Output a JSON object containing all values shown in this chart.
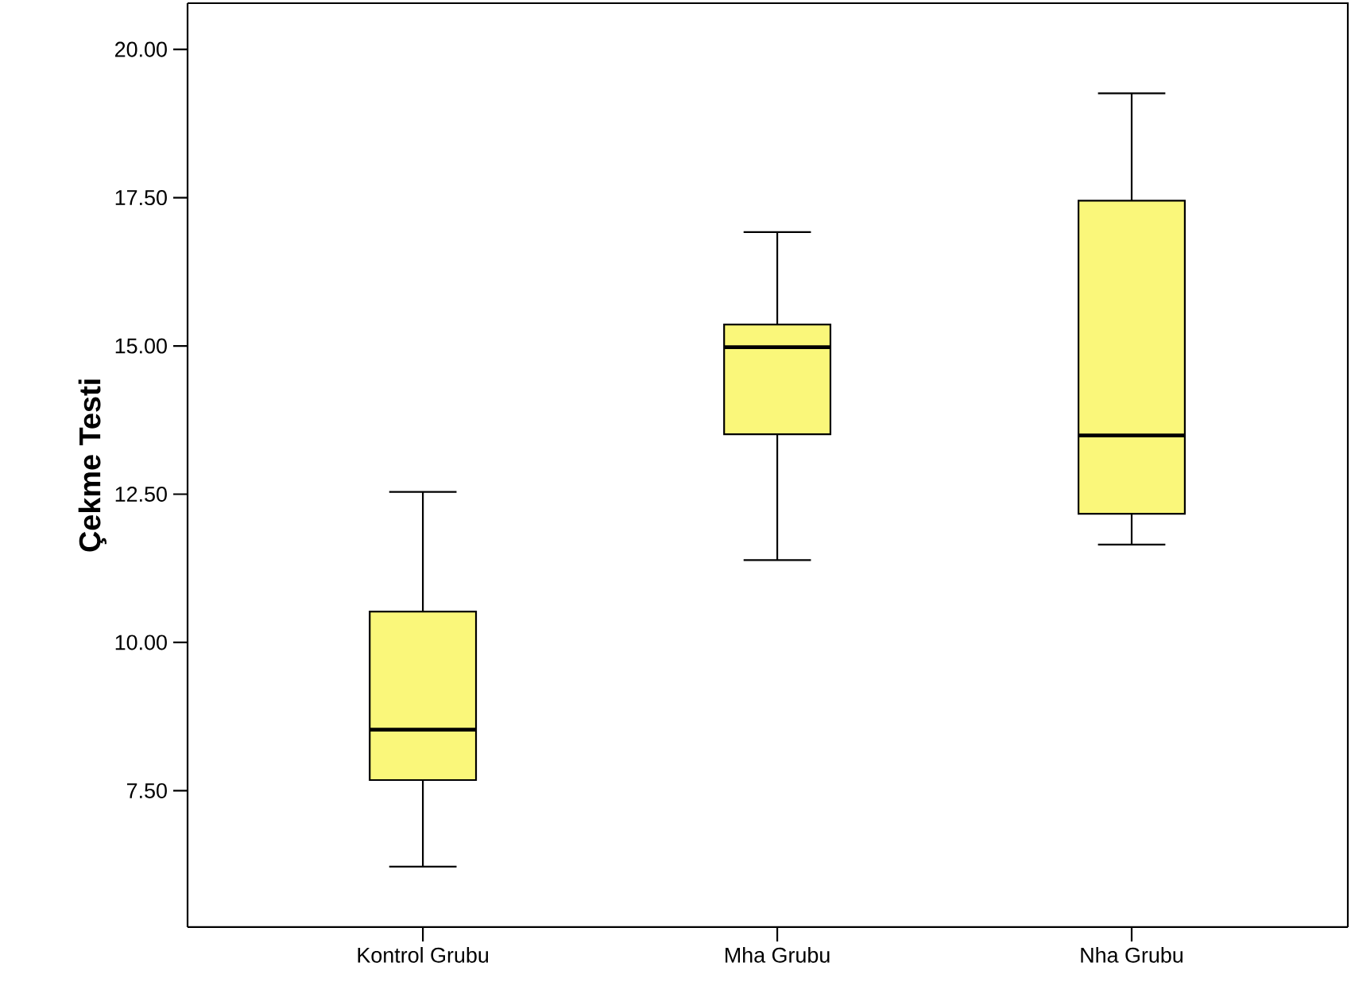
{
  "chart_data": {
    "type": "box",
    "ylabel": "Çekme Testi",
    "categories": [
      "Kontrol Grubu",
      "Mha Grubu",
      "Nha Grubu"
    ],
    "boxes": [
      {
        "low": 6.22,
        "q1": 7.68,
        "median": 8.53,
        "q3": 10.52,
        "high": 12.54
      },
      {
        "low": 11.39,
        "q1": 13.51,
        "median": 14.98,
        "q3": 15.36,
        "high": 16.92
      },
      {
        "low": 11.65,
        "q1": 12.17,
        "median": 13.49,
        "q3": 17.45,
        "high": 19.26
      }
    ],
    "color": "#faf77a",
    "ylim": [
      5.2,
      20.78
    ],
    "yticks": [
      {
        "value": 7.5,
        "label": "7.50"
      },
      {
        "value": 10,
        "label": "10.00"
      },
      {
        "value": 12.5,
        "label": "12.50"
      },
      {
        "value": 15,
        "label": "15.00"
      },
      {
        "value": 17.5,
        "label": "17.50"
      },
      {
        "value": 20,
        "label": "20.00"
      }
    ]
  }
}
